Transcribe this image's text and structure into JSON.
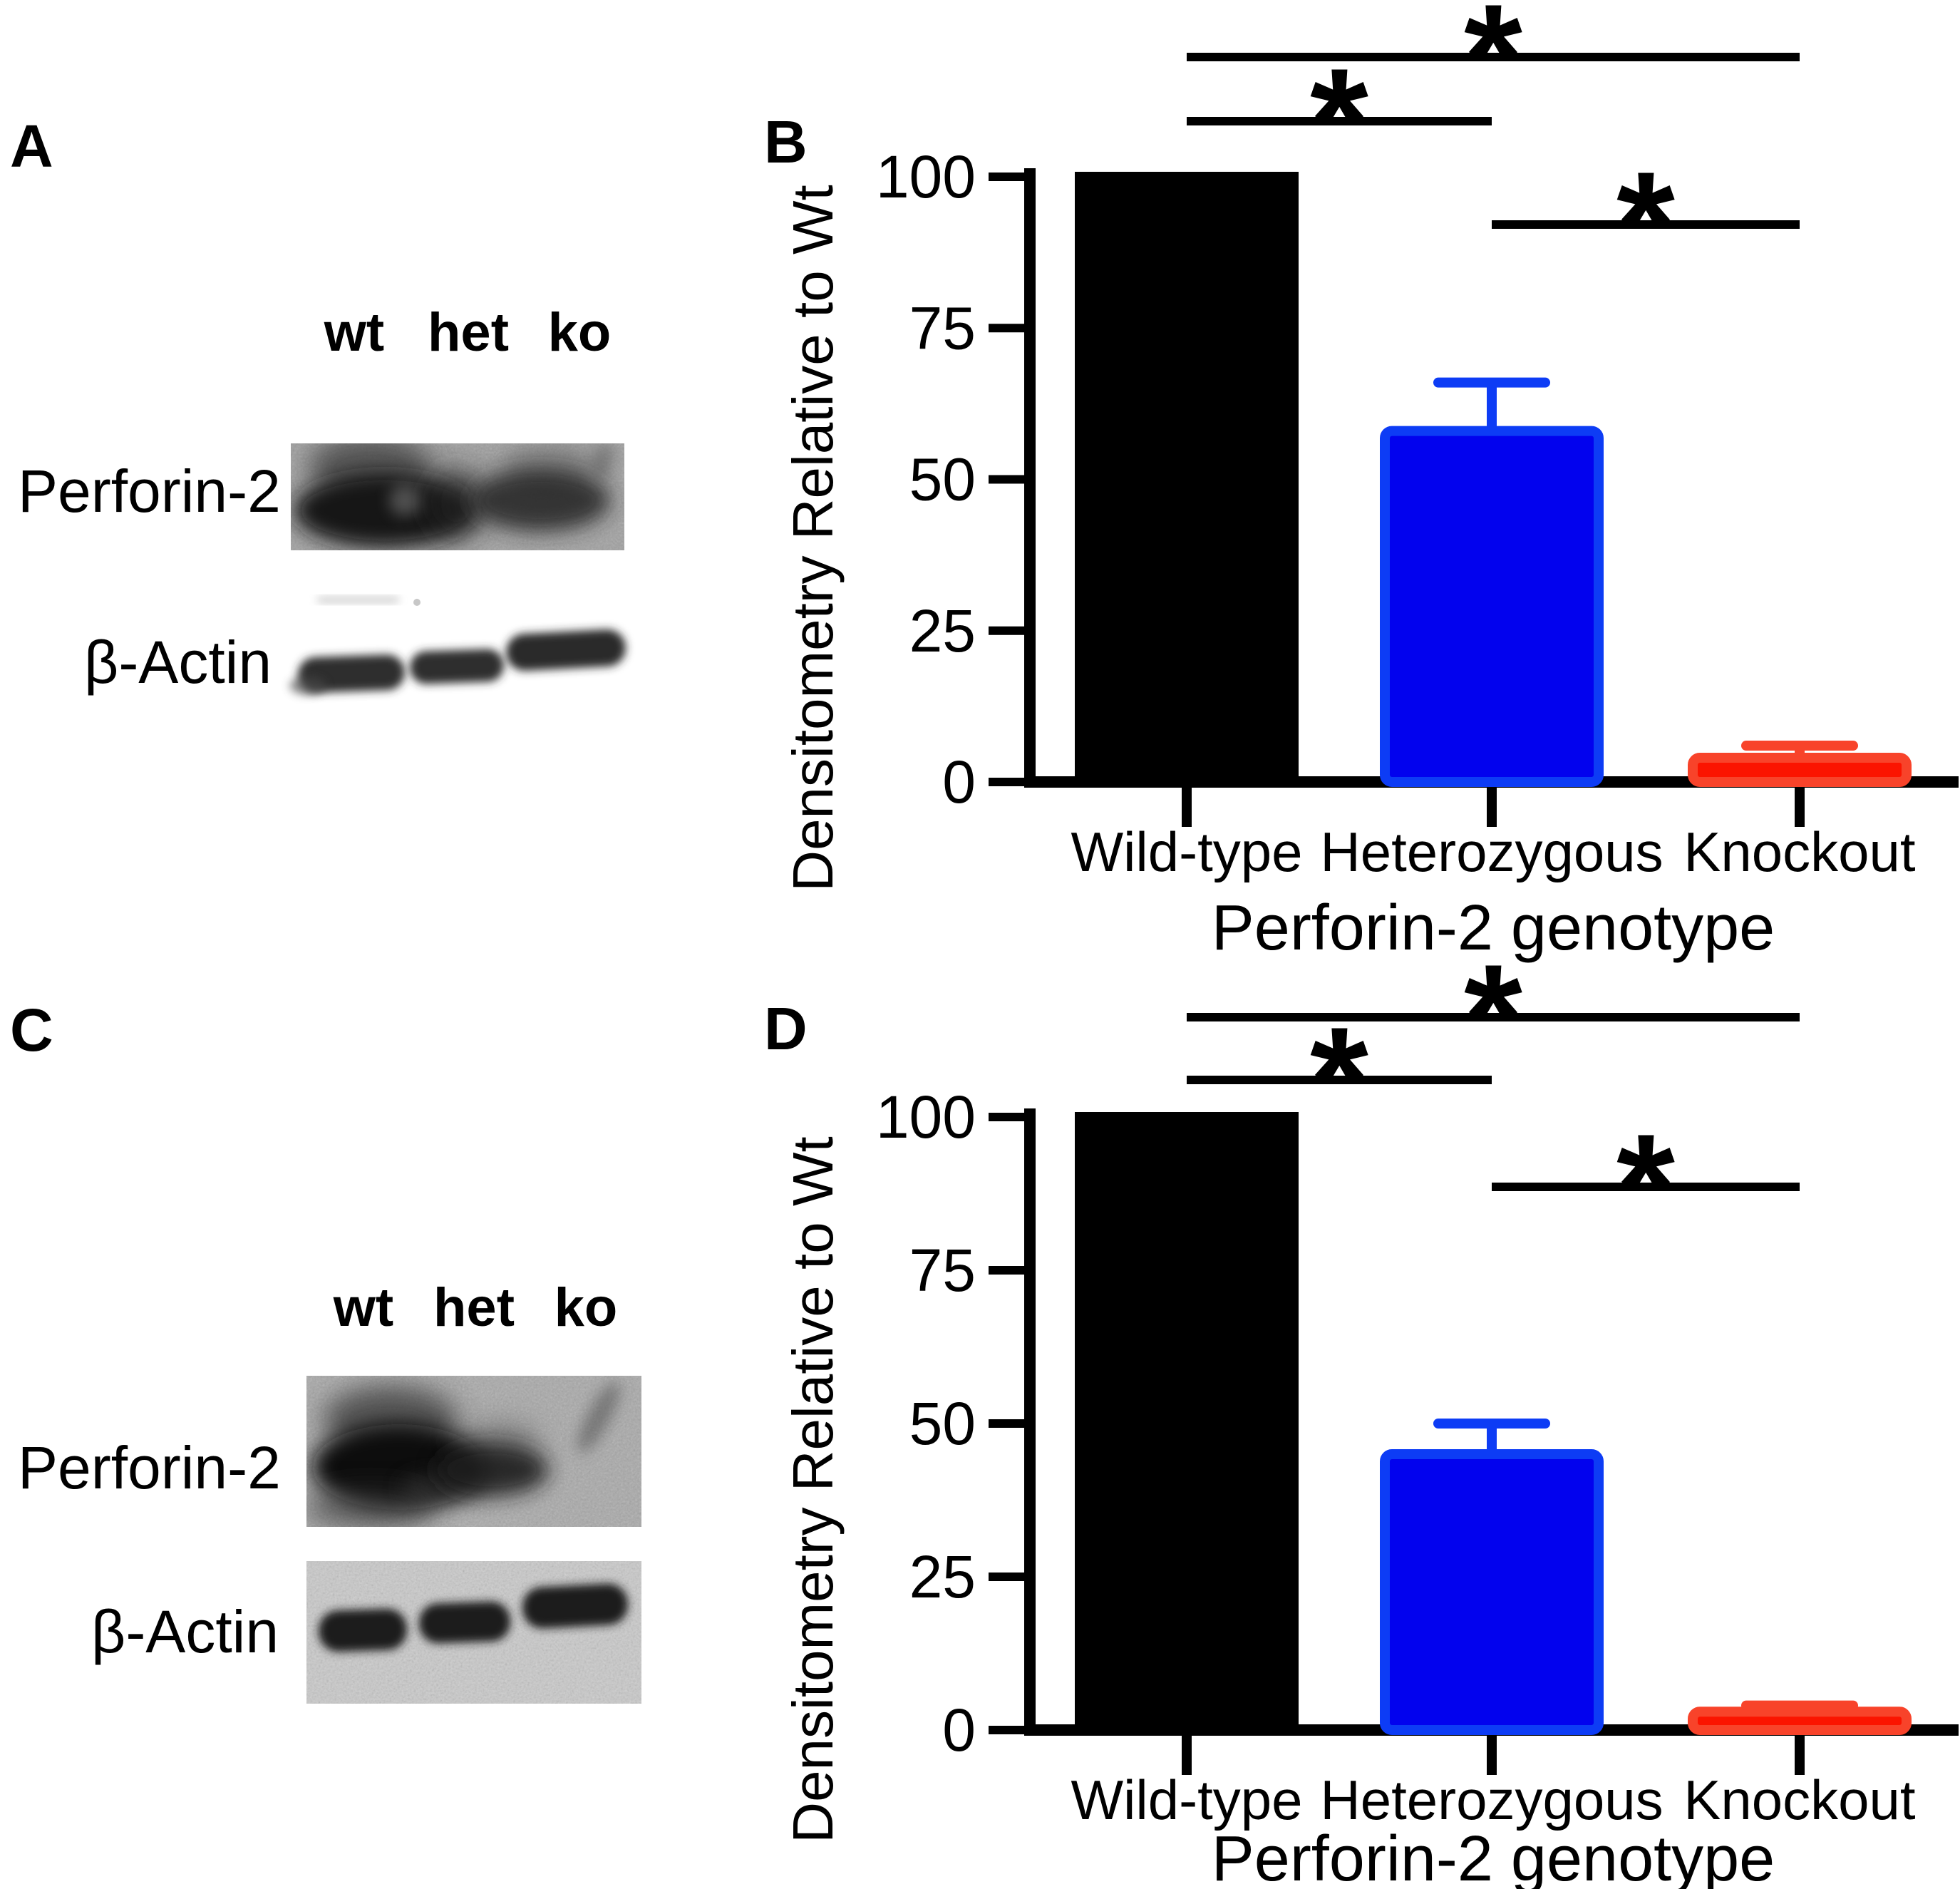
{
  "panel_a": {
    "label": "A",
    "lane_labels": [
      "wt",
      "het",
      "ko"
    ],
    "row1": "Perforin-2",
    "row2": "β-Actin"
  },
  "panel_c": {
    "label": "C",
    "lane_labels": [
      "wt",
      "het",
      "ko"
    ],
    "row1": "Perforin-2",
    "row2": "β-Actin"
  },
  "chart_data": [
    {
      "panel_label": "B",
      "type": "bar",
      "title": "",
      "categories": [
        "Wild-type",
        "Heterozygous",
        "Knockout"
      ],
      "values": [
        100,
        58,
        4
      ],
      "errors_plus": [
        0,
        8,
        2
      ],
      "colors": [
        "#000000",
        "#0202EE",
        "#FB1400"
      ],
      "edge_colors": [
        "#000000",
        "#0D3CF5",
        "#F8432A"
      ],
      "yticks": [
        0,
        25,
        50,
        75,
        100
      ],
      "ylim": [
        0,
        100
      ],
      "xlabel": "Perforin-2 genotype",
      "ylabel": "Densitometry Relative to Wt",
      "grid": false,
      "legend": false,
      "significance": [
        {
          "between": [
            "Wild-type",
            "Knockout"
          ],
          "label": "*"
        },
        {
          "between": [
            "Wild-type",
            "Heterozygous"
          ],
          "label": "*"
        },
        {
          "between": [
            "Heterozygous",
            "Knockout"
          ],
          "label": "*"
        }
      ]
    },
    {
      "panel_label": "D",
      "type": "bar",
      "title": "",
      "categories": [
        "Wild-type",
        "Heterozygous",
        "Knockout"
      ],
      "values": [
        100,
        45,
        3
      ],
      "errors_plus": [
        0,
        5,
        1
      ],
      "colors": [
        "#000000",
        "#0202EE",
        "#FB1400"
      ],
      "edge_colors": [
        "#000000",
        "#0D3CF5",
        "#F8432A"
      ],
      "yticks": [
        0,
        25,
        50,
        75,
        100
      ],
      "ylim": [
        0,
        100
      ],
      "xlabel": "Perforin-2 genotype",
      "ylabel": "Densitometry Relative to Wt",
      "grid": false,
      "legend": false,
      "significance": [
        {
          "between": [
            "Wild-type",
            "Knockout"
          ],
          "label": "*"
        },
        {
          "between": [
            "Wild-type",
            "Heterozygous"
          ],
          "label": "*"
        },
        {
          "between": [
            "Heterozygous",
            "Knockout"
          ],
          "label": "*"
        }
      ]
    }
  ]
}
